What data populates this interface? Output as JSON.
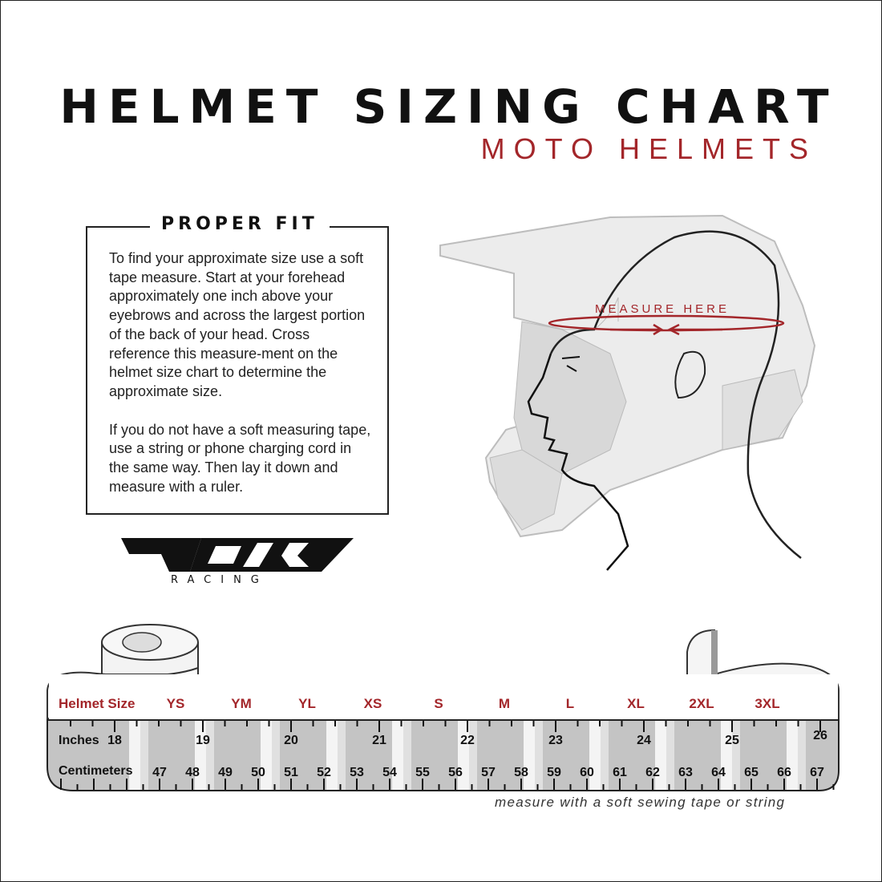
{
  "header": {
    "title": "HELMET SIZING CHART",
    "subtitle": "MOTO HELMETS"
  },
  "proper_fit": {
    "heading": "PROPER FIT",
    "paragraphs": [
      "To find your approximate size use a soft tape measure. Start at your forehead approximately one inch above your eyebrows and across the largest portion of the back of your head. Cross reference this measure-ment on the helmet size chart to determine the approximate size.",
      "If you do not have a soft measuring tape, use a string or phone charging cord in the same way. Then lay it down and measure with a ruler."
    ]
  },
  "illustration": {
    "measure_label": "MEASURE HERE"
  },
  "logo": {
    "brand": "FLY",
    "tagline": "RACING"
  },
  "tape": {
    "size_row_label": "Helmet Size",
    "sizes": [
      "YS",
      "YM",
      "YL",
      "XS",
      "S",
      "M",
      "L",
      "XL",
      "2XL",
      "3XL"
    ],
    "inches_label": "Inches",
    "inches": [
      "18",
      "19",
      "20",
      "21",
      "22",
      "23",
      "24",
      "25",
      "26"
    ],
    "cm_label": "Centimeters",
    "centimeters": [
      "47",
      "48",
      "49",
      "50",
      "51",
      "52",
      "53",
      "54",
      "55",
      "56",
      "57",
      "58",
      "59",
      "60",
      "61",
      "62",
      "63",
      "64",
      "65",
      "66",
      "67"
    ],
    "caption": "measure with a soft sewing tape or string"
  },
  "colors": {
    "accent": "#a3262a",
    "text": "#111111",
    "tape_gray": "#c4c4c4"
  }
}
